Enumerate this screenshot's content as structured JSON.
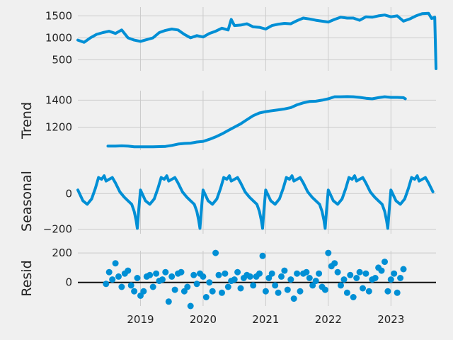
{
  "chart_data": [
    {
      "type": "line",
      "ylabel": "",
      "ylim": [
        250,
        1700
      ],
      "yticks": [
        500,
        1000,
        1500
      ],
      "ytick_labels": [
        "500",
        "1000",
        "1500"
      ],
      "x_range": [
        2018.0,
        2023.72
      ],
      "series": [
        {
          "x": [
            2018.0,
            2018.1,
            2018.2,
            2018.3,
            2018.4,
            2018.5,
            2018.6,
            2018.7,
            2018.8,
            2018.9,
            2019.0,
            2019.1,
            2019.2,
            2019.3,
            2019.4,
            2019.5,
            2019.6,
            2019.7,
            2019.8,
            2019.9,
            2020.0,
            2020.1,
            2020.2,
            2020.3,
            2020.4,
            2020.45,
            2020.5,
            2020.6,
            2020.7,
            2020.8,
            2020.9,
            2021.0,
            2021.1,
            2021.2,
            2021.3,
            2021.4,
            2021.5,
            2021.6,
            2021.7,
            2021.8,
            2021.9,
            2022.0,
            2022.1,
            2022.2,
            2022.3,
            2022.4,
            2022.5,
            2022.6,
            2022.7,
            2022.8,
            2022.9,
            2023.0,
            2023.1,
            2023.2,
            2023.3,
            2023.4,
            2023.5,
            2023.6,
            2023.65,
            2023.7,
            2023.72
          ],
          "y": [
            950,
            900,
            1000,
            1080,
            1120,
            1150,
            1100,
            1180,
            1000,
            950,
            920,
            960,
            1000,
            1120,
            1170,
            1200,
            1180,
            1080,
            1000,
            1050,
            1020,
            1100,
            1150,
            1220,
            1180,
            1420,
            1280,
            1290,
            1320,
            1250,
            1240,
            1200,
            1280,
            1310,
            1330,
            1320,
            1390,
            1450,
            1430,
            1400,
            1380,
            1360,
            1420,
            1470,
            1450,
            1450,
            1400,
            1480,
            1470,
            1500,
            1520,
            1480,
            1500,
            1380,
            1430,
            1500,
            1550,
            1560,
            1440,
            1470,
            300
          ]
        }
      ]
    },
    {
      "type": "line",
      "ylabel": "Trend",
      "ylim": [
        1030,
        1470
      ],
      "yticks": [
        1200,
        1400
      ],
      "ytick_labels": [
        "1200",
        "1400"
      ],
      "x_range": [
        2018.0,
        2023.72
      ],
      "series": [
        {
          "x": [
            2018.48,
            2018.6,
            2018.7,
            2018.8,
            2018.9,
            2019.0,
            2019.1,
            2019.2,
            2019.3,
            2019.4,
            2019.5,
            2019.6,
            2019.7,
            2019.8,
            2019.9,
            2020.0,
            2020.1,
            2020.2,
            2020.3,
            2020.4,
            2020.5,
            2020.6,
            2020.7,
            2020.8,
            2020.9,
            2021.0,
            2021.1,
            2021.2,
            2021.3,
            2021.4,
            2021.5,
            2021.6,
            2021.7,
            2021.8,
            2021.9,
            2022.0,
            2022.1,
            2022.2,
            2022.3,
            2022.4,
            2022.5,
            2022.6,
            2022.7,
            2022.8,
            2022.9,
            2023.0,
            2023.1,
            2023.2,
            2023.23
          ],
          "y": [
            1060,
            1060,
            1062,
            1060,
            1055,
            1055,
            1055,
            1055,
            1056,
            1058,
            1065,
            1075,
            1080,
            1082,
            1090,
            1095,
            1110,
            1128,
            1150,
            1175,
            1200,
            1225,
            1255,
            1285,
            1305,
            1315,
            1322,
            1328,
            1335,
            1345,
            1365,
            1380,
            1390,
            1392,
            1400,
            1410,
            1425,
            1425,
            1426,
            1425,
            1420,
            1414,
            1410,
            1418,
            1425,
            1420,
            1420,
            1418,
            1410
          ]
        }
      ]
    },
    {
      "type": "line",
      "ylabel": "Seasonal",
      "ylim": [
        -225,
        140
      ],
      "yticks": [
        -200,
        0
      ],
      "ytick_labels": [
        "−200",
        "0"
      ],
      "x_range": [
        2018.0,
        2023.72
      ],
      "series": [
        {
          "period": 1.0,
          "x": [
            0.0,
            0.08,
            0.15,
            0.22,
            0.28,
            0.33,
            0.38,
            0.42,
            0.45,
            0.5,
            0.55,
            0.6,
            0.67,
            0.74,
            0.8,
            0.86,
            0.9,
            0.93,
            0.95,
            0.97,
            1.0
          ],
          "y": [
            20,
            -40,
            -60,
            -30,
            30,
            90,
            80,
            100,
            70,
            80,
            90,
            60,
            10,
            -20,
            -40,
            -60,
            -100,
            -150,
            -195,
            -100,
            20
          ]
        }
      ]
    },
    {
      "type": "scatter",
      "ylabel": "Resid",
      "ylim": [
        -160,
        215
      ],
      "yticks": [
        0,
        200
      ],
      "ytick_labels": [
        "0",
        "200"
      ],
      "x_range": [
        2018.0,
        2023.72
      ],
      "xticks": [
        2019,
        2020,
        2021,
        2022,
        2023
      ],
      "xtick_labels": [
        "2019",
        "2020",
        "2021",
        "2022",
        "2023"
      ],
      "series": [
        {
          "x": [
            2018.45,
            2018.5,
            2018.55,
            2018.6,
            2018.65,
            2018.7,
            2018.75,
            2018.8,
            2018.85,
            2018.9,
            2018.95,
            2019.0,
            2019.05,
            2019.1,
            2019.15,
            2019.2,
            2019.25,
            2019.3,
            2019.35,
            2019.4,
            2019.45,
            2019.5,
            2019.55,
            2019.6,
            2019.65,
            2019.7,
            2019.75,
            2019.8,
            2019.85,
            2019.9,
            2019.95,
            2020.0,
            2020.05,
            2020.1,
            2020.15,
            2020.2,
            2020.25,
            2020.3,
            2020.35,
            2020.4,
            2020.45,
            2020.5,
            2020.55,
            2020.6,
            2020.65,
            2020.7,
            2020.75,
            2020.8,
            2020.85,
            2020.9,
            2020.95,
            2021.0,
            2021.05,
            2021.1,
            2021.15,
            2021.2,
            2021.25,
            2021.3,
            2021.35,
            2021.4,
            2021.45,
            2021.5,
            2021.55,
            2021.6,
            2021.65,
            2021.7,
            2021.75,
            2021.8,
            2021.85,
            2021.9,
            2021.95,
            2022.0,
            2022.05,
            2022.1,
            2022.15,
            2022.2,
            2022.25,
            2022.3,
            2022.35,
            2022.4,
            2022.45,
            2022.5,
            2022.55,
            2022.6,
            2022.65,
            2022.7,
            2022.75,
            2022.8,
            2022.85,
            2022.9,
            2022.95,
            2023.0,
            2023.05,
            2023.1,
            2023.15,
            2023.2
          ],
          "y": [
            -10,
            70,
            20,
            130,
            40,
            -30,
            60,
            80,
            -20,
            -60,
            30,
            -90,
            -60,
            40,
            50,
            -30,
            60,
            10,
            20,
            70,
            -130,
            40,
            -50,
            60,
            70,
            -60,
            -30,
            -160,
            50,
            -10,
            60,
            40,
            -100,
            0,
            -60,
            200,
            50,
            -70,
            60,
            -30,
            10,
            20,
            70,
            -40,
            30,
            50,
            40,
            -20,
            40,
            60,
            180,
            -60,
            30,
            60,
            -20,
            -70,
            40,
            80,
            -50,
            20,
            -110,
            60,
            -60,
            60,
            70,
            30,
            -20,
            10,
            60,
            -30,
            -50,
            200,
            110,
            130,
            70,
            -20,
            20,
            -70,
            50,
            -100,
            30,
            70,
            -40,
            60,
            -60,
            20,
            30,
            100,
            80,
            140,
            -60,
            20,
            60,
            -70,
            30,
            90
          ]
        }
      ]
    }
  ]
}
